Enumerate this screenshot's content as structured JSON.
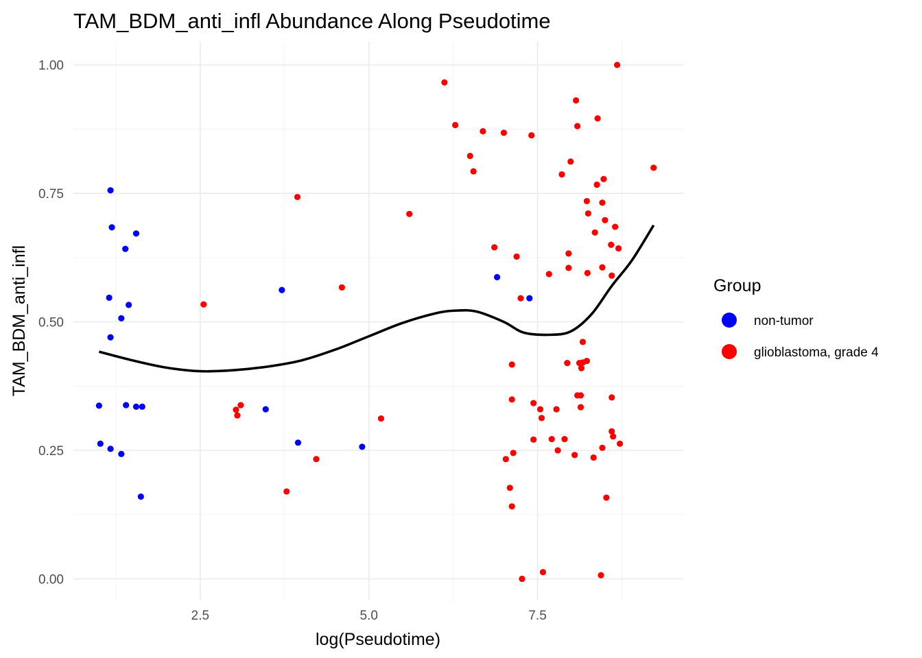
{
  "chart_data": {
    "type": "scatter",
    "title": "TAM_BDM_anti_infl Abundance Along Pseudotime",
    "xlabel": "log(Pseudotime)",
    "ylabel": "TAM_BDM_anti_infl",
    "xlim": [
      0.62,
      9.66
    ],
    "ylim": [
      -0.042,
      1.045
    ],
    "xticks": [
      2.5,
      5.0,
      7.5
    ],
    "xtick_labels": [
      "2.5",
      "5.0",
      "7.5"
    ],
    "yticks": [
      0.0,
      0.25,
      0.5,
      0.75,
      1.0
    ],
    "ytick_labels": [
      "0.00",
      "0.25",
      "0.50",
      "0.75",
      "1.00"
    ],
    "grid": true,
    "legend": {
      "title": "Group",
      "placement": "right"
    },
    "series": [
      {
        "name": "non-tumor",
        "color": "#0000ff",
        "points": [
          [
            1.0,
            0.337
          ],
          [
            1.02,
            0.263
          ],
          [
            1.17,
            0.756
          ],
          [
            1.19,
            0.684
          ],
          [
            1.15,
            0.547
          ],
          [
            1.17,
            0.47
          ],
          [
            1.17,
            0.253
          ],
          [
            1.33,
            0.507
          ],
          [
            1.33,
            0.243
          ],
          [
            1.39,
            0.642
          ],
          [
            1.44,
            0.533
          ],
          [
            1.4,
            0.338
          ],
          [
            1.55,
            0.672
          ],
          [
            1.55,
            0.335
          ],
          [
            1.64,
            0.335
          ],
          [
            1.62,
            0.16
          ],
          [
            3.47,
            0.33
          ],
          [
            3.71,
            0.562
          ],
          [
            3.95,
            0.265
          ],
          [
            4.9,
            0.257
          ],
          [
            6.9,
            0.587
          ],
          [
            7.38,
            0.546
          ]
        ]
      },
      {
        "name": "glioblastoma, grade 4",
        "color": "#ff0000",
        "points": [
          [
            2.55,
            0.534
          ],
          [
            3.03,
            0.329
          ],
          [
            3.05,
            0.318
          ],
          [
            3.1,
            0.338
          ],
          [
            3.78,
            0.17
          ],
          [
            3.94,
            0.743
          ],
          [
            4.22,
            0.233
          ],
          [
            4.6,
            0.567
          ],
          [
            5.18,
            0.312
          ],
          [
            5.6,
            0.71
          ],
          [
            6.12,
            0.966
          ],
          [
            6.28,
            0.883
          ],
          [
            6.5,
            0.823
          ],
          [
            6.55,
            0.793
          ],
          [
            6.69,
            0.871
          ],
          [
            6.86,
            0.645
          ],
          [
            7.0,
            0.868
          ],
          [
            7.03,
            0.233
          ],
          [
            7.09,
            0.177
          ],
          [
            7.12,
            0.417
          ],
          [
            7.12,
            0.349
          ],
          [
            7.12,
            0.141
          ],
          [
            7.14,
            0.245
          ],
          [
            7.19,
            0.627
          ],
          [
            7.25,
            0.546
          ],
          [
            7.27,
            0.0
          ],
          [
            7.41,
            0.863
          ],
          [
            7.44,
            0.342
          ],
          [
            7.44,
            0.271
          ],
          [
            7.54,
            0.33
          ],
          [
            7.56,
            0.313
          ],
          [
            7.58,
            0.013
          ],
          [
            7.67,
            0.593
          ],
          [
            7.71,
            0.272
          ],
          [
            7.78,
            0.33
          ],
          [
            7.8,
            0.25
          ],
          [
            7.86,
            0.787
          ],
          [
            7.9,
            0.272
          ],
          [
            7.94,
            0.42
          ],
          [
            7.96,
            0.633
          ],
          [
            7.96,
            0.605
          ],
          [
            7.99,
            0.812
          ],
          [
            8.05,
            0.241
          ],
          [
            8.07,
            0.931
          ],
          [
            8.09,
            0.881
          ],
          [
            8.09,
            0.357
          ],
          [
            8.12,
            0.42
          ],
          [
            8.14,
            0.334
          ],
          [
            8.14,
            0.357
          ],
          [
            8.15,
            0.41
          ],
          [
            8.17,
            0.421
          ],
          [
            8.17,
            0.461
          ],
          [
            8.23,
            0.424
          ],
          [
            8.23,
            0.735
          ],
          [
            8.25,
            0.711
          ],
          [
            8.24,
            0.595
          ],
          [
            8.35,
            0.674
          ],
          [
            8.38,
            0.767
          ],
          [
            8.39,
            0.896
          ],
          [
            8.33,
            0.236
          ],
          [
            8.46,
            0.606
          ],
          [
            8.46,
            0.732
          ],
          [
            8.48,
            0.778
          ],
          [
            8.5,
            0.698
          ],
          [
            8.46,
            0.255
          ],
          [
            8.44,
            0.007
          ],
          [
            8.52,
            0.158
          ],
          [
            8.59,
            0.65
          ],
          [
            8.6,
            0.59
          ],
          [
            8.6,
            0.353
          ],
          [
            8.6,
            0.287
          ],
          [
            8.62,
            0.277
          ],
          [
            8.65,
            0.685
          ],
          [
            8.68,
            1.0
          ],
          [
            8.7,
            0.643
          ],
          [
            8.72,
            0.263
          ],
          [
            9.22,
            0.8
          ]
        ]
      }
    ],
    "smooth": {
      "color": "#000000",
      "points": [
        [
          1.0,
          0.442
        ],
        [
          1.5,
          0.425
        ],
        [
          2.0,
          0.411
        ],
        [
          2.5,
          0.404
        ],
        [
          3.0,
          0.406
        ],
        [
          3.5,
          0.413
        ],
        [
          4.0,
          0.425
        ],
        [
          4.5,
          0.446
        ],
        [
          5.0,
          0.472
        ],
        [
          5.5,
          0.498
        ],
        [
          6.0,
          0.517
        ],
        [
          6.3,
          0.522
        ],
        [
          6.6,
          0.52
        ],
        [
          7.0,
          0.5
        ],
        [
          7.3,
          0.479
        ],
        [
          7.7,
          0.475
        ],
        [
          8.0,
          0.482
        ],
        [
          8.3,
          0.515
        ],
        [
          8.6,
          0.57
        ],
        [
          8.9,
          0.62
        ],
        [
          9.22,
          0.688
        ]
      ]
    }
  }
}
